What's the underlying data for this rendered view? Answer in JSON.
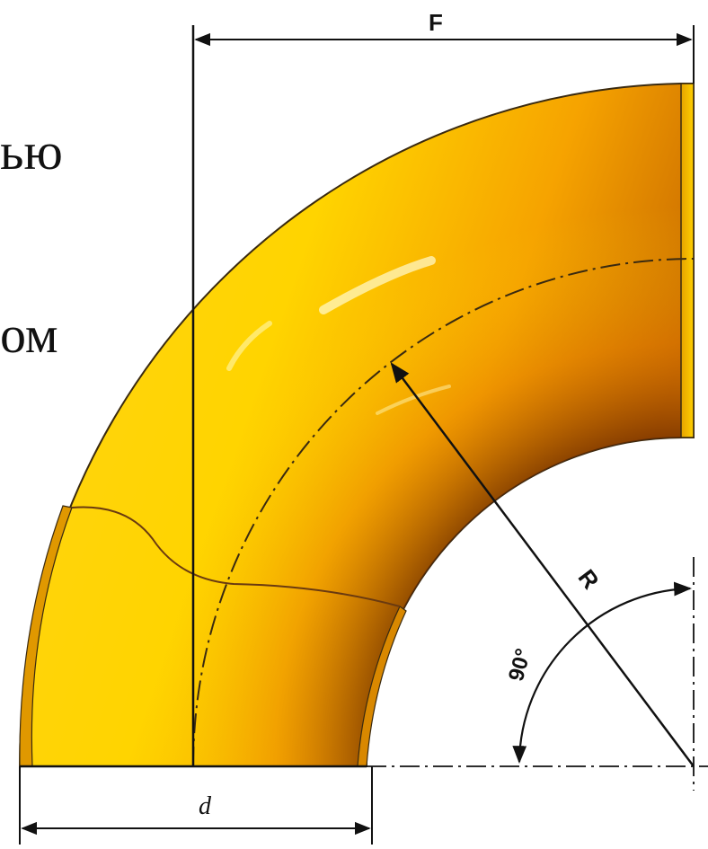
{
  "side_text": {
    "line1": "ью",
    "line2": "ом"
  },
  "dimensions": {
    "f_label": "F",
    "r_label": "R",
    "angle_label": "90°",
    "d_label": "d"
  },
  "colors": {
    "body_light": "#ffe21a",
    "body_mid": "#f7b100",
    "body_dark": "#8a3d00",
    "outline": "#3a2a10",
    "line": "#111111"
  }
}
